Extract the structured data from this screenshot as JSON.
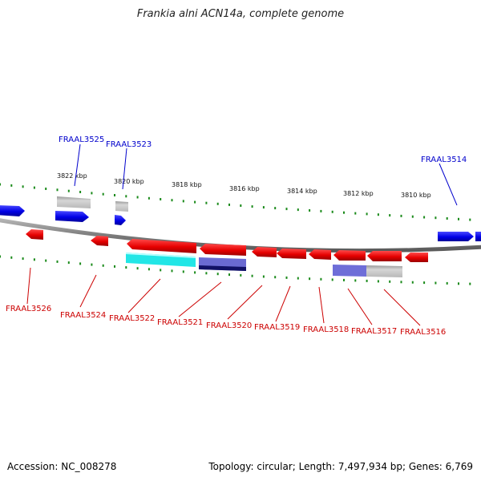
{
  "title": "Frankia alni ACN14a, complete genome",
  "accession": "Accession: NC_008278",
  "summary": "Topology: circular; Length: 7,497,934 bp; Genes: 6,769",
  "colors": {
    "forward_gene": "#0000ee",
    "reverse_gene": "#ee0000",
    "forward_label": "#0000cc",
    "reverse_label": "#cc0000",
    "backbone": "#8c8c8c",
    "tick": "#1a8a1a",
    "cds_cyan": "#22e6e6",
    "cds_navy": "#1a1a7a",
    "cds_violet": "#6e6ed8",
    "cds_gray": "#c4c4c4"
  },
  "scale_labels": [
    "3822 kbp",
    "3820 kbp",
    "3818 kbp",
    "3816 kbp",
    "3814 kbp",
    "3812 kbp",
    "3810 kbp"
  ],
  "forward_genes": [
    "FRAAL3525",
    "FRAAL3523",
    "FRAAL3514"
  ],
  "reverse_genes": [
    "FRAAL3526",
    "FRAAL3524",
    "FRAAL3522",
    "FRAAL3521",
    "FRAAL3520",
    "FRAAL3519",
    "FRAAL3518",
    "FRAAL3517",
    "FRAAL3516"
  ]
}
